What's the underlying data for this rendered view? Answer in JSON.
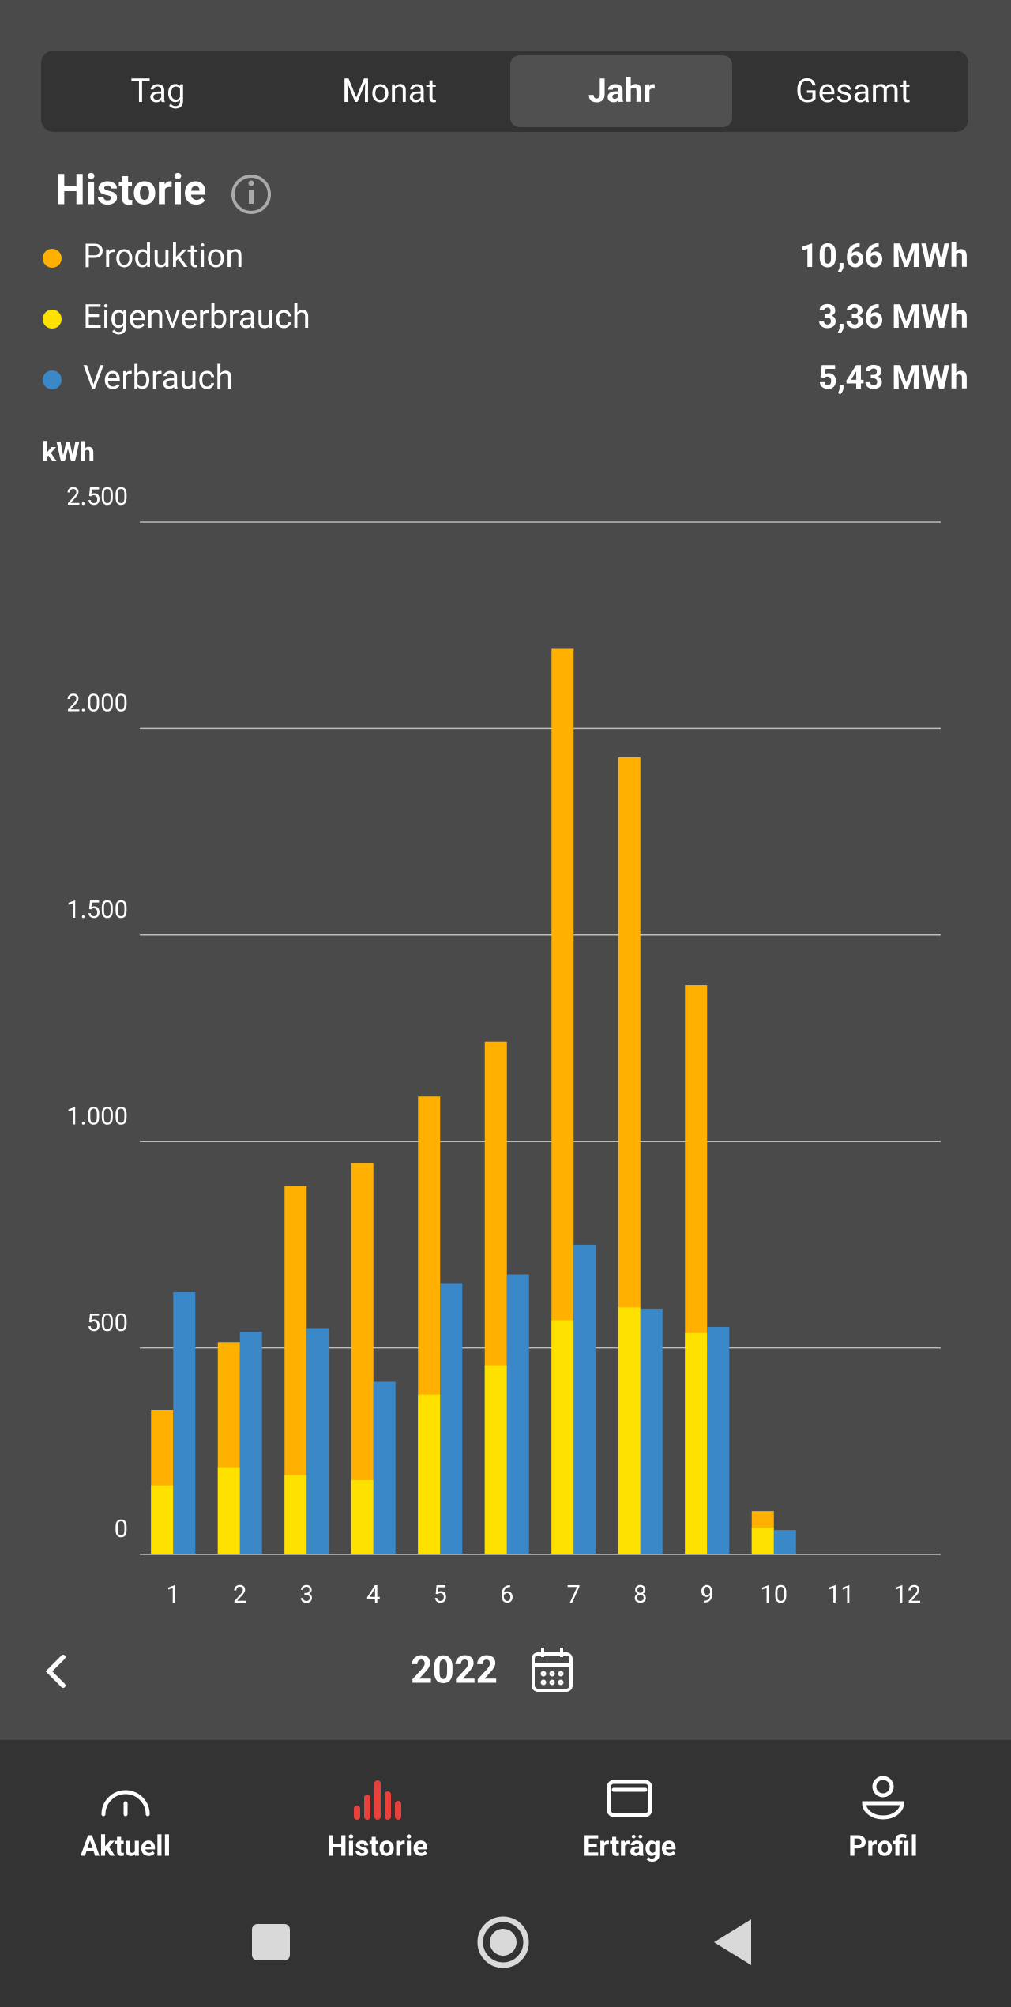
{
  "tabs": [
    "Tag",
    "Monat",
    "Jahr",
    "Gesamt"
  ],
  "section_title": "Historie",
  "chart_data": {
    "type": "bar",
    "y_label": "kWh",
    "categories": [
      "1",
      "2",
      "3",
      "4",
      "5",
      "6",
      "7",
      "8",
      "9",
      "10",
      "11",
      "12"
    ],
    "series": [
      {
        "name": "Produktion",
        "total": "10,66 MWh",
        "color": "#ffb000",
        "values": [
          350,
          514,
          892,
          948,
          1109,
          1242,
          2193,
          1930,
          1379,
          105,
          null,
          null
        ]
      },
      {
        "name": "Eigenverbrauch",
        "total": "3,36 MWh",
        "color": "#ffe100",
        "values": [
          167,
          211,
          192,
          180,
          387,
          458,
          567,
          598,
          536,
          65,
          null,
          null
        ]
      },
      {
        "name": "Verbrauch",
        "total": "5,43 MWh",
        "color": "#3a88c8",
        "values": [
          635,
          539,
          548,
          418,
          657,
          678,
          750,
          595,
          551,
          59,
          null,
          null
        ]
      }
    ],
    "ylim": [
      0,
      2500
    ],
    "yticks": [
      0,
      500,
      {
        "value": 1000,
        "label": "1.000"
      },
      {
        "value": 1500,
        "label": "1.500"
      },
      {
        "value": 2000,
        "label": "2.000"
      },
      {
        "value": 2500,
        "label": "2.500"
      }
    ],
    "grid": true
  },
  "year": "2022",
  "nav": [
    "Aktuell",
    "Historie",
    "Erträge",
    "Profil"
  ]
}
